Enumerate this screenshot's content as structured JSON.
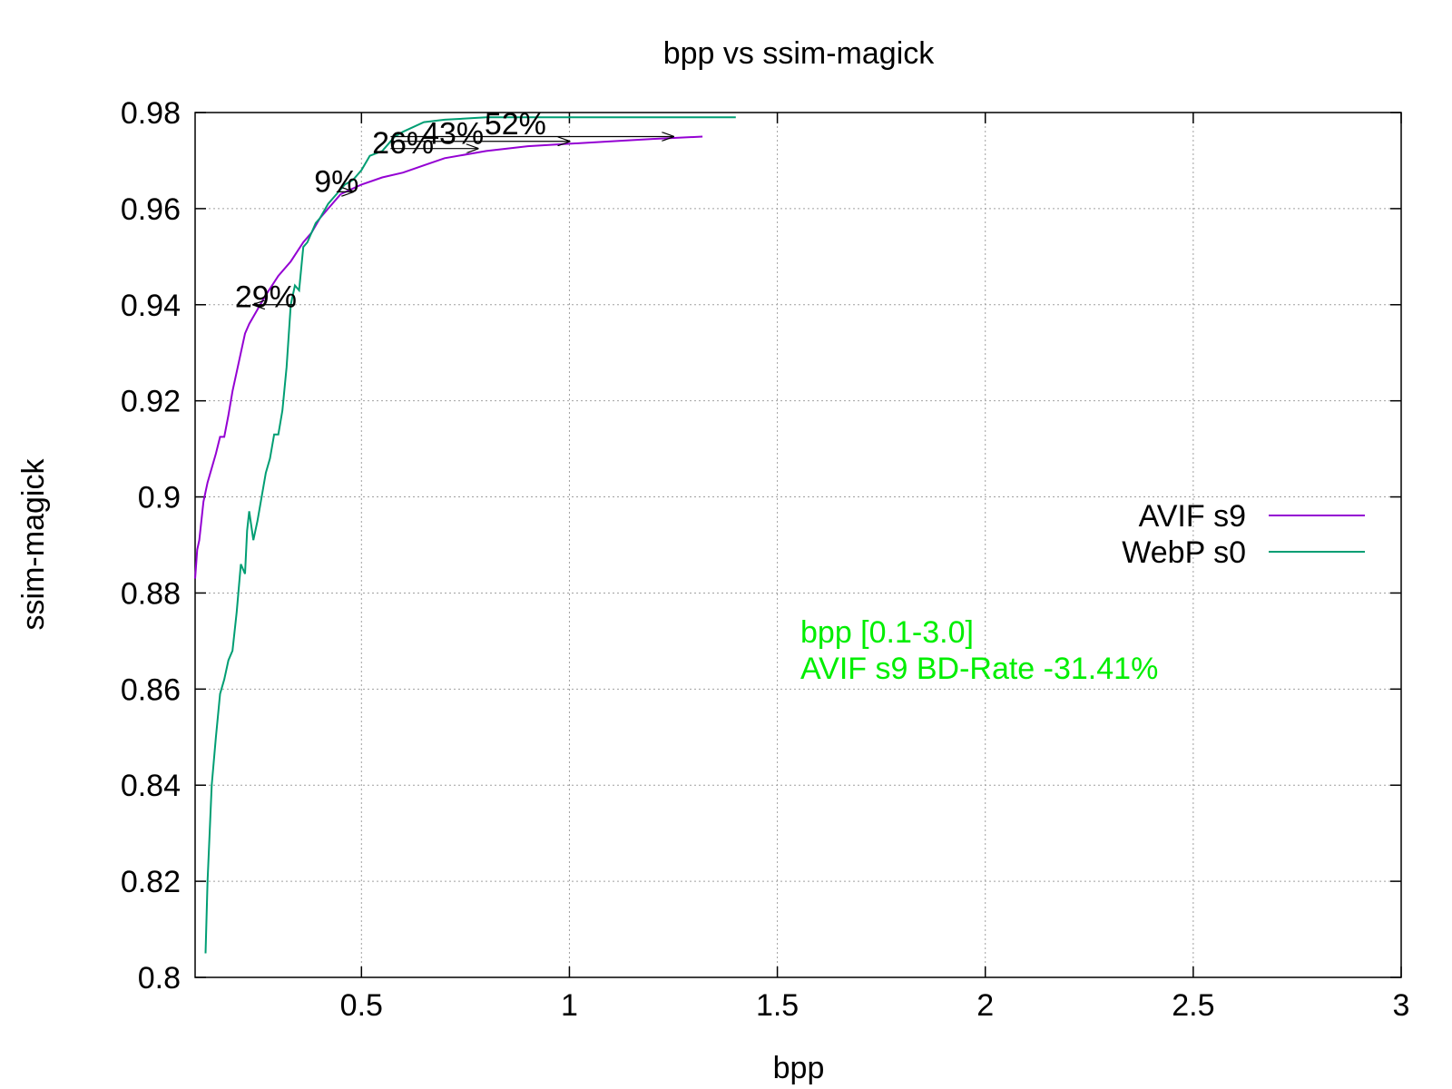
{
  "chart_data": {
    "type": "line",
    "title": "bpp vs ssim-magick",
    "xlabel": "bpp",
    "ylabel": "ssim-magick",
    "xlim": [
      0.1,
      3.0
    ],
    "ylim": [
      0.8,
      0.98
    ],
    "x_ticks": [
      {
        "value": 0.5,
        "label": "0.5"
      },
      {
        "value": 1.0,
        "label": "1"
      },
      {
        "value": 1.5,
        "label": "1.5"
      },
      {
        "value": 2.0,
        "label": "2"
      },
      {
        "value": 2.5,
        "label": "2.5"
      },
      {
        "value": 3.0,
        "label": "3"
      }
    ],
    "y_ticks": [
      {
        "value": 0.8,
        "label": "0.8"
      },
      {
        "value": 0.82,
        "label": "0.82"
      },
      {
        "value": 0.84,
        "label": "0.84"
      },
      {
        "value": 0.86,
        "label": "0.86"
      },
      {
        "value": 0.88,
        "label": "0.88"
      },
      {
        "value": 0.9,
        "label": "0.9"
      },
      {
        "value": 0.92,
        "label": "0.92"
      },
      {
        "value": 0.94,
        "label": "0.94"
      },
      {
        "value": 0.96,
        "label": "0.96"
      },
      {
        "value": 0.98,
        "label": "0.98"
      }
    ],
    "grid": true,
    "legend_position": "right",
    "series": [
      {
        "name": "AVIF s9",
        "color": "#9400d3",
        "x": [
          0.1,
          0.105,
          0.11,
          0.115,
          0.12,
          0.13,
          0.14,
          0.15,
          0.16,
          0.17,
          0.18,
          0.19,
          0.2,
          0.21,
          0.22,
          0.23,
          0.25,
          0.27,
          0.3,
          0.33,
          0.36,
          0.38,
          0.4,
          0.42,
          0.45,
          0.5,
          0.55,
          0.6,
          0.65,
          0.7,
          0.8,
          0.9,
          1.0,
          1.1,
          1.2,
          1.32
        ],
        "y": [
          0.883,
          0.889,
          0.891,
          0.895,
          0.899,
          0.903,
          0.906,
          0.909,
          0.9125,
          0.9125,
          0.917,
          0.922,
          0.926,
          0.93,
          0.934,
          0.936,
          0.939,
          0.942,
          0.946,
          0.949,
          0.953,
          0.955,
          0.958,
          0.96,
          0.963,
          0.965,
          0.9665,
          0.9675,
          0.969,
          0.9705,
          0.972,
          0.973,
          0.9735,
          0.974,
          0.9745,
          0.975
        ]
      },
      {
        "name": "WebP s0",
        "color": "#009e73",
        "x": [
          0.125,
          0.13,
          0.135,
          0.14,
          0.145,
          0.15,
          0.16,
          0.17,
          0.18,
          0.19,
          0.2,
          0.21,
          0.22,
          0.225,
          0.23,
          0.24,
          0.25,
          0.26,
          0.27,
          0.28,
          0.29,
          0.3,
          0.31,
          0.32,
          0.33,
          0.34,
          0.35,
          0.36,
          0.37,
          0.38,
          0.39,
          0.4,
          0.42,
          0.44,
          0.46,
          0.48,
          0.5,
          0.52,
          0.55,
          0.57,
          0.58,
          0.6,
          0.65,
          0.7,
          0.8,
          1.0,
          1.2,
          1.4
        ],
        "y": [
          0.805,
          0.82,
          0.83,
          0.84,
          0.845,
          0.85,
          0.859,
          0.862,
          0.866,
          0.868,
          0.876,
          0.886,
          0.884,
          0.893,
          0.897,
          0.891,
          0.895,
          0.9,
          0.905,
          0.908,
          0.913,
          0.913,
          0.918,
          0.927,
          0.94,
          0.944,
          0.943,
          0.952,
          0.953,
          0.955,
          0.957,
          0.958,
          0.961,
          0.963,
          0.965,
          0.966,
          0.968,
          0.971,
          0.972,
          0.974,
          0.975,
          0.976,
          0.978,
          0.9785,
          0.979,
          0.979,
          0.979,
          0.979
        ]
      }
    ],
    "annotations": [
      {
        "label": "29%",
        "y": 0.94,
        "from_x": 0.34,
        "to_x": 0.24
      },
      {
        "label": "9%",
        "y": 0.9635,
        "from_x": 0.44,
        "to_x": 0.48
      },
      {
        "label": "26%",
        "y": 0.9725,
        "from_x": 0.57,
        "to_x": 0.78
      },
      {
        "label": "43%",
        "y": 0.974,
        "from_x": 0.57,
        "to_x": 1.0
      },
      {
        "label": "52%",
        "y": 0.975,
        "from_x": 0.57,
        "to_x": 1.25
      }
    ],
    "info_box": {
      "color": "#00ee00",
      "lines": [
        "bpp [0.1-3.0]",
        "AVIF s9 BD-Rate -31.41%"
      ]
    }
  }
}
